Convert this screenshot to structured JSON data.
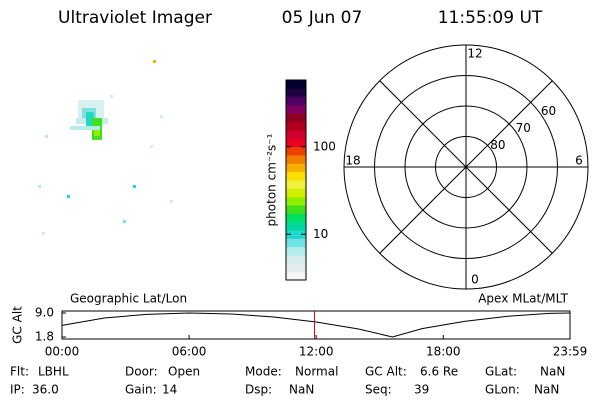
{
  "header": {
    "title": "Ultraviolet Imager",
    "date": "05 Jun 07",
    "time": "11:55:09 UT"
  },
  "chart_data": [
    {
      "type": "colorbar",
      "label": "photon cm⁻²s⁻¹",
      "scale": "log",
      "clim": [
        3,
        580
      ],
      "ticks": [
        10,
        100
      ],
      "colors": [
        "#f4f4f4",
        "#e6ecec",
        "#d4ecec",
        "#b4ecec",
        "#70e4e4",
        "#20d8d0",
        "#00d8a0",
        "#00e060",
        "#40e020",
        "#90f000",
        "#d0f000",
        "#f0f040",
        "#f8e000",
        "#f8b000",
        "#f08000",
        "#f04000",
        "#e80020",
        "#d00030",
        "#b00020",
        "#900020",
        "#800060",
        "#500060",
        "#200040",
        "#000030"
      ]
    },
    {
      "type": "polar",
      "mlt_ticks": [
        0,
        6,
        12,
        18
      ],
      "lat_rings": [
        80,
        70,
        60
      ],
      "rlim": [
        90,
        50
      ]
    },
    {
      "type": "line",
      "title_left": "Geographic Lat/Lon",
      "title_right": "Apex MLat/MLT",
      "ylabel": "GC Alt",
      "x": [
        0,
        2,
        4,
        6,
        8,
        10,
        12,
        14,
        15.6,
        17,
        19,
        21,
        23,
        23.983
      ],
      "values": [
        5.3,
        7.5,
        8.6,
        9.0,
        8.7,
        7.8,
        6.3,
        4.2,
        1.8,
        4.3,
        6.5,
        8.0,
        8.9,
        9.0
      ],
      "color": "#000000",
      "marker_x": 11.919,
      "marker_color": "#e00000",
      "xlim": [
        0,
        23.983
      ],
      "xticks": [
        {
          "value": 0,
          "label": "00:00"
        },
        {
          "value": 6,
          "label": "06:00"
        },
        {
          "value": 12,
          "label": "12:00"
        },
        {
          "value": 18,
          "label": "18:00"
        },
        {
          "value": 23.983,
          "label": "23:59"
        }
      ],
      "ylim": [
        1.8,
        9.0
      ],
      "yticks": [
        {
          "value": 9.0,
          "label": "9.0"
        },
        {
          "value": 1.8,
          "label": "1.8"
        }
      ]
    }
  ],
  "status": [
    [
      [
        "Flt:",
        "LBHL"
      ],
      [
        "Door:",
        "Open"
      ],
      [
        "Mode:",
        "Normal"
      ],
      [
        "GC Alt:",
        "6.6 Re"
      ],
      [
        "GLat:",
        "NaN"
      ]
    ],
    [
      [
        "IP:",
        "36.0"
      ],
      [
        "Gain:",
        "14"
      ],
      [
        "Dsp:",
        "NaN"
      ],
      [
        "Seq:",
        "39"
      ],
      [
        "GLon:",
        "NaN"
      ]
    ]
  ]
}
